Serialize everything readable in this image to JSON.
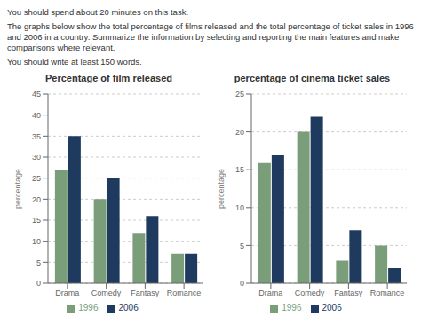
{
  "annotations": [
    "You should spend about 20 minutes on this task.",
    "The graphs below show the total percentage of films released and the total percentage of ticket sales in 1996 and 2006 in a country. Summarize the information by selecting and reporting the main features and make comparisons where relevant.",
    "You should write at least 150 words."
  ],
  "chart_data": [
    {
      "type": "bar",
      "title": "Percentage of film released",
      "categories": [
        "Drama",
        "Comedy",
        "Fantasy",
        "Romance"
      ],
      "series": [
        {
          "name": "1996",
          "color": "#7a9e7a",
          "values": [
            27,
            20,
            12,
            7
          ]
        },
        {
          "name": "2006",
          "color": "#1e3a5f",
          "values": [
            35,
            25,
            16,
            7
          ]
        }
      ],
      "ylabel": "percentage",
      "ylim": [
        0,
        45
      ],
      "yticks": [
        0,
        5,
        10,
        15,
        20,
        25,
        30,
        35,
        40,
        45
      ],
      "grid": true,
      "legend": "bottom"
    },
    {
      "type": "bar",
      "title": "percentage of cinema ticket sales",
      "categories": [
        "Drama",
        "Comedy",
        "Fantasy",
        "Romance"
      ],
      "series": [
        {
          "name": "1996",
          "color": "#7a9e7a",
          "values": [
            16,
            20,
            3,
            5
          ]
        },
        {
          "name": "2006",
          "color": "#1e3a5f",
          "values": [
            17,
            22,
            7,
            2
          ]
        }
      ],
      "ylabel": "percentage",
      "ylim": [
        0,
        25
      ],
      "yticks": [
        0,
        5,
        10,
        15,
        20,
        25
      ],
      "grid": true,
      "legend": "bottom"
    }
  ]
}
